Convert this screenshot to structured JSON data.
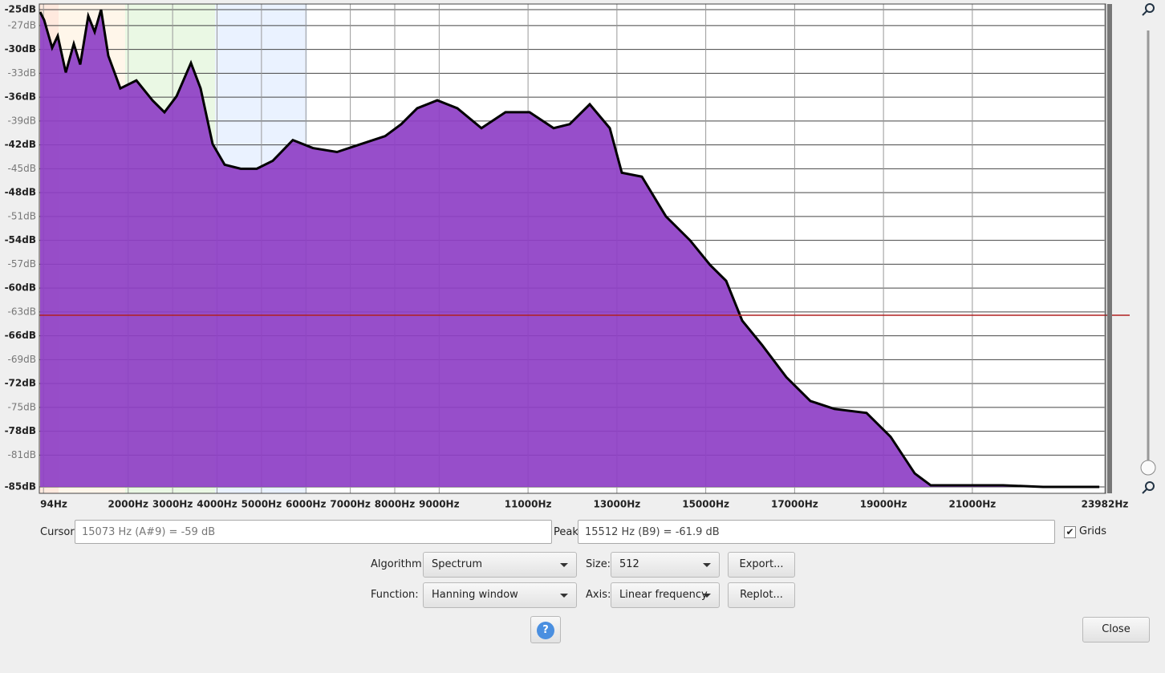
{
  "chart_data": {
    "type": "area",
    "x": [
      18,
      108,
      289,
      415,
      596,
      776,
      921,
      1102,
      1246,
      1390,
      1553,
      1824,
      2185,
      2546,
      2817,
      3088,
      3413,
      3630,
      3901,
      4172,
      4533,
      4894,
      5255,
      5706,
      6158,
      6700,
      7242,
      7784,
      8145,
      8506,
      8957,
      9409,
      9951,
      10492,
      11034,
      11576,
      11937,
      12389,
      12840,
      13111,
      13562,
      14104,
      14646,
      15098,
      15459,
      15820,
      16272,
      16813,
      17355,
      17897,
      18619,
      19161,
      19703,
      20064,
      20787,
      21690,
      22593,
      23858
    ],
    "values": [
      -25.3,
      -26.3,
      -29.8,
      -28.3,
      -32.9,
      -29.3,
      -31.9,
      -25.8,
      -27.8,
      -25,
      -30.8,
      -34.9,
      -33.9,
      -36.4,
      -37.9,
      -35.9,
      -31.7,
      -34.9,
      -41.9,
      -44.5,
      -45,
      -45,
      -44,
      -41.4,
      -42.4,
      -42.9,
      -41.9,
      -40.9,
      -39.4,
      -37.4,
      -36.4,
      -37.4,
      -39.9,
      -37.9,
      -37.9,
      -39.9,
      -39.4,
      -36.9,
      -39.9,
      -45.5,
      -46,
      -51,
      -54,
      -57.1,
      -59.1,
      -64.1,
      -67.2,
      -71.2,
      -74.2,
      -75.2,
      -75.7,
      -78.7,
      -83.3,
      -84.8,
      -84.8,
      -84.8,
      -85,
      -85
    ],
    "color": "#8e3fc6",
    "xlim": [
      0,
      24000
    ],
    "ylim": [
      -85,
      -25
    ],
    "xticks": [
      {
        "value": 94,
        "label": "94Hz"
      },
      {
        "value": 2000,
        "label": "2000Hz"
      },
      {
        "value": 3000,
        "label": "3000Hz"
      },
      {
        "value": 4000,
        "label": "4000Hz"
      },
      {
        "value": 5000,
        "label": "5000Hz"
      },
      {
        "value": 6000,
        "label": "6000Hz"
      },
      {
        "value": 7000,
        "label": "7000Hz"
      },
      {
        "value": 8000,
        "label": "8000Hz"
      },
      {
        "value": 9000,
        "label": "9000Hz"
      },
      {
        "value": 11000,
        "label": "11000Hz"
      },
      {
        "value": 13000,
        "label": "13000Hz"
      },
      {
        "value": 15000,
        "label": "15000Hz"
      },
      {
        "value": 17000,
        "label": "17000Hz"
      },
      {
        "value": 19000,
        "label": "19000Hz"
      },
      {
        "value": 21000,
        "label": "21000Hz"
      },
      {
        "value": 23982,
        "label": "23982Hz"
      }
    ],
    "yticks": [
      {
        "value": -25,
        "label": "-25dB"
      },
      {
        "value": -27,
        "label": "-27dB"
      },
      {
        "value": -30,
        "label": "-30dB"
      },
      {
        "value": -33,
        "label": "-33dB"
      },
      {
        "value": -36,
        "label": "-36dB"
      },
      {
        "value": -39,
        "label": "-39dB"
      },
      {
        "value": -42,
        "label": "-42dB"
      },
      {
        "value": -45,
        "label": "-45dB"
      },
      {
        "value": -48,
        "label": "-48dB"
      },
      {
        "value": -51,
        "label": "-51dB"
      },
      {
        "value": -54,
        "label": "-54dB"
      },
      {
        "value": -57,
        "label": "-57dB"
      },
      {
        "value": -60,
        "label": "-60dB"
      },
      {
        "value": -63,
        "label": "-63dB"
      },
      {
        "value": -66,
        "label": "-66dB"
      },
      {
        "value": -69,
        "label": "-69dB"
      },
      {
        "value": -72,
        "label": "-72dB"
      },
      {
        "value": -75,
        "label": "-75dB"
      },
      {
        "value": -78,
        "label": "-78dB"
      },
      {
        "value": -81,
        "label": "-81dB"
      },
      {
        "value": -85,
        "label": "-85dB"
      }
    ],
    "grid": true
  },
  "controls": {
    "cursor_label": "Cursor:",
    "cursor_value": "15073 Hz (A#9) = -59 dB",
    "peak_label": "Peak:",
    "peak_value": "15512 Hz (B9) = -61.9 dB",
    "grids": "Grids",
    "algorithm_label": "Algorithm:",
    "algorithm": "Spectrum",
    "size_label": "Size:",
    "size": "512",
    "export": "Export...",
    "function_label": "Function:",
    "function": "Hanning window",
    "axis_label": "Axis:",
    "axis": "Linear frequency",
    "replot": "Replot...",
    "help": "?",
    "close": "Close"
  }
}
